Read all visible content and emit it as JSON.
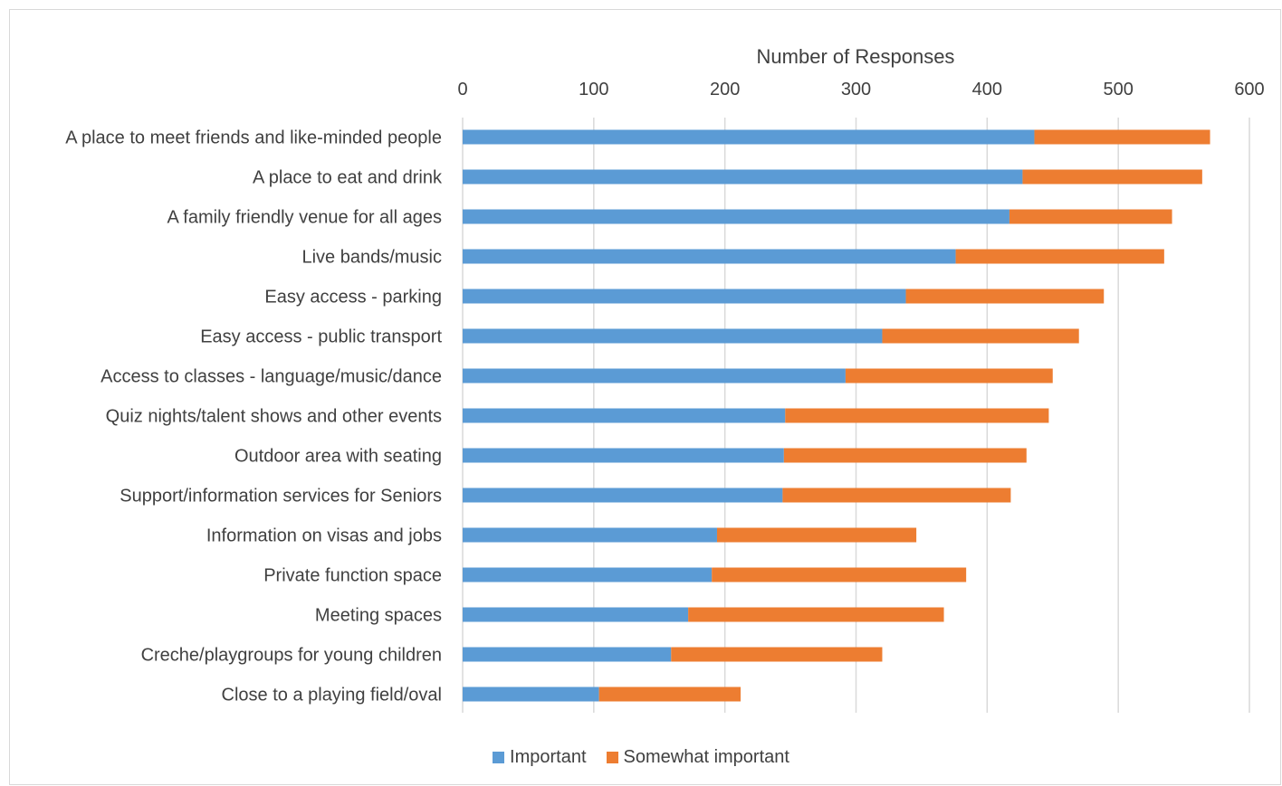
{
  "colors": {
    "important": "#5b9bd5",
    "somewhat_important": "#ed7d31",
    "grid": "#d9d9d9",
    "text": "#404040"
  },
  "chart_data": {
    "type": "bar",
    "orientation": "horizontal",
    "stacked": true,
    "title": "",
    "xlabel": "Number of Responses",
    "ylabel": "",
    "xlim": [
      0,
      600
    ],
    "xticks": [
      0,
      100,
      200,
      300,
      400,
      500,
      600
    ],
    "x_axis_position": "top",
    "grid": true,
    "legend_position": "bottom",
    "categories": [
      "A place to meet friends and like-minded people",
      "A place to eat and drink",
      "A family friendly venue for all ages",
      "Live bands/music",
      "Easy access - parking",
      "Easy access - public transport",
      "Access to classes - language/music/dance",
      "Quiz nights/talent shows and other events",
      "Outdoor area with seating",
      "Support/information services for Seniors",
      "Information on visas and jobs",
      "Private function space",
      "Meeting spaces",
      "Creche/playgroups for young children",
      "Close to a playing field/oval"
    ],
    "series": [
      {
        "name": "Important",
        "values": [
          436,
          427,
          417,
          376,
          338,
          320,
          292,
          246,
          245,
          244,
          194,
          190,
          172,
          159,
          104
        ]
      },
      {
        "name": "Somewhat important",
        "values": [
          134,
          137,
          124,
          159,
          151,
          150,
          158,
          201,
          185,
          174,
          152,
          194,
          195,
          161,
          108
        ]
      }
    ]
  }
}
